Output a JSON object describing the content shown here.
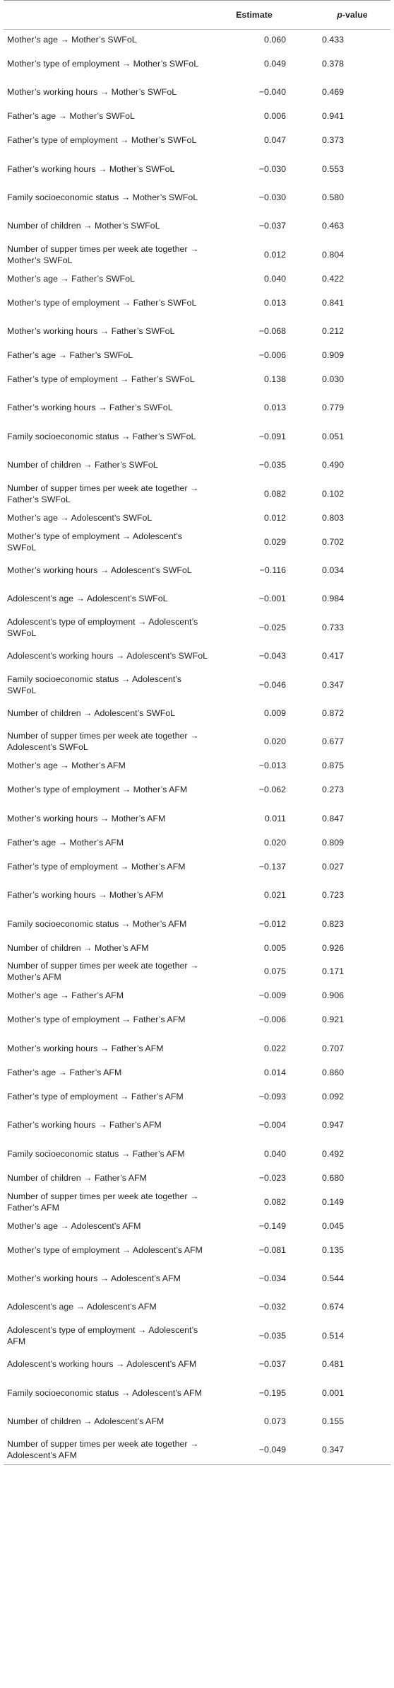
{
  "header": {
    "estimate": "Estimate",
    "p_italic": "p",
    "p_suffix": "-value"
  },
  "rows": [
    {
      "label": "Mother’s age → Mother’s SWFoL",
      "estimate": "0.060",
      "p": "0.433"
    },
    {
      "label": "Mother’s type of employment → Mother’s SWFoL",
      "estimate": "0.049",
      "p": "0.378"
    },
    {
      "label": "Mother’s working hours → Mother’s SWFoL",
      "estimate": "−0.040",
      "p": "0.469"
    },
    {
      "label": "Father’s age → Mother’s SWFoL",
      "estimate": "0.006",
      "p": "0.941"
    },
    {
      "label": "Father’s type of employment → Mother’s SWFoL",
      "estimate": "0.047",
      "p": "0.373"
    },
    {
      "label": "Father’s working hours → Mother’s SWFoL",
      "estimate": "−0.030",
      "p": "0.553"
    },
    {
      "label": "Family socioeconomic status → Mother’s SWFoL",
      "estimate": "−0.030",
      "p": "0.580"
    },
    {
      "label": "Number of children → Mother’s SWFoL",
      "estimate": "−0.037",
      "p": "0.463"
    },
    {
      "label": "Number of supper times per week ate together → Mother’s SWFoL",
      "estimate": "0.012",
      "p": "0.804"
    },
    {
      "label": "Mother’s age → Father’s SWFoL",
      "estimate": "0.040",
      "p": "0.422"
    },
    {
      "label": "Mother’s type of employment → Father’s SWFoL",
      "estimate": "0.013",
      "p": "0.841"
    },
    {
      "label": "Mother’s working hours → Father’s SWFoL",
      "estimate": "−0.068",
      "p": "0.212"
    },
    {
      "label": "Father’s age → Father’s SWFoL",
      "estimate": "−0.006",
      "p": "0.909"
    },
    {
      "label": "Father’s type of employment → Father’s SWFoL",
      "estimate": "0.138",
      "p": "0.030"
    },
    {
      "label": "Father’s working hours → Father’s SWFoL",
      "estimate": "0.013",
      "p": "0.779"
    },
    {
      "label": "Family socioeconomic status → Father’s SWFoL",
      "estimate": "−0.091",
      "p": "0.051"
    },
    {
      "label": "Number of children → Father’s SWFoL",
      "estimate": "−0.035",
      "p": "0.490"
    },
    {
      "label": "Number of supper times per week ate together → Father’s SWFoL",
      "estimate": "0.082",
      "p": "0.102"
    },
    {
      "label": "Mother’s age → Adolescent’s SWFoL",
      "estimate": "0.012",
      "p": "0.803"
    },
    {
      "label": "Mother’s type of employment → Adolescent’s SWFoL",
      "estimate": "0.029",
      "p": "0.702"
    },
    {
      "label": "Mother’s working hours → Adolescent’s SWFoL",
      "estimate": "−0.116",
      "p": "0.034"
    },
    {
      "label": "Adolescent’s age → Adolescent’s SWFoL",
      "estimate": "−0.001",
      "p": "0.984"
    },
    {
      "label": "Adolescent’s type of employment → Adolescent’s SWFoL",
      "estimate": "−0.025",
      "p": "0.733"
    },
    {
      "label": "Adolescent’s working hours → Adolescent’s SWFoL",
      "estimate": "−0.043",
      "p": "0.417"
    },
    {
      "label": "Family socioeconomic status → Adolescent’s SWFoL",
      "estimate": "−0.046",
      "p": "0.347"
    },
    {
      "label": "Number of children → Adolescent’s SWFoL",
      "estimate": "0.009",
      "p": "0.872"
    },
    {
      "label": "Number of supper times per week ate together → Adolescent’s SWFoL",
      "estimate": "0.020",
      "p": "0.677"
    },
    {
      "label": "Mother’s age → Mother’s AFM",
      "estimate": "−0.013",
      "p": "0.875"
    },
    {
      "label": "Mother’s type of employment → Mother’s AFM",
      "estimate": "−0.062",
      "p": "0.273"
    },
    {
      "label": "Mother’s working hours → Mother’s AFM",
      "estimate": "0.011",
      "p": "0.847"
    },
    {
      "label": "Father’s age → Mother’s AFM",
      "estimate": "0.020",
      "p": "0.809"
    },
    {
      "label": "Father’s type of employment → Mother’s AFM",
      "estimate": "−0.137",
      "p": "0.027"
    },
    {
      "label": "Father’s working hours → Mother’s AFM",
      "estimate": "0.021",
      "p": "0.723"
    },
    {
      "label": "Family socioeconomic status → Mother’s AFM",
      "estimate": "−0.012",
      "p": "0.823"
    },
    {
      "label": "Number of children → Mother’s AFM",
      "estimate": "0.005",
      "p": "0.926"
    },
    {
      "label": "Number of supper times per week ate together → Mother’s AFM",
      "estimate": "0.075",
      "p": "0.171"
    },
    {
      "label": "Mother’s age → Father’s AFM",
      "estimate": "−0.009",
      "p": "0.906"
    },
    {
      "label": "Mother’s type of employment → Father’s AFM",
      "estimate": "−0.006",
      "p": "0.921"
    },
    {
      "label": "Mother’s working hours → Father’s AFM",
      "estimate": "0.022",
      "p": "0.707"
    },
    {
      "label": "Father’s age → Father’s AFM",
      "estimate": "0.014",
      "p": "0.860"
    },
    {
      "label": "Father’s type of employment → Father’s AFM",
      "estimate": "−0.093",
      "p": "0.092"
    },
    {
      "label": "Father’s working hours → Father’s AFM",
      "estimate": "−0.004",
      "p": "0.947"
    },
    {
      "label": "Family socioeconomic status → Father’s AFM",
      "estimate": "0.040",
      "p": "0.492"
    },
    {
      "label": "Number of children → Father’s AFM",
      "estimate": "−0.023",
      "p": "0.680"
    },
    {
      "label": "Number of supper times per week ate together → Father’s AFM",
      "estimate": "0.082",
      "p": "0.149"
    },
    {
      "label": "Mother’s age → Adolescent’s AFM",
      "estimate": "−0.149",
      "p": "0.045"
    },
    {
      "label": "Mother’s type of employment → Adolescent’s AFM",
      "estimate": "−0.081",
      "p": "0.135"
    },
    {
      "label": "Mother’s working hours → Adolescent’s AFM",
      "estimate": "−0.034",
      "p": "0.544"
    },
    {
      "label": "Adolescent’s age → Adolescent’s AFM",
      "estimate": "−0.032",
      "p": "0.674"
    },
    {
      "label": "Adolescent’s type of employment → Adolescent’s AFM",
      "estimate": "−0.035",
      "p": "0.514"
    },
    {
      "label": "Adolescent’s working hours → Adolescent’s AFM",
      "estimate": "−0.037",
      "p": "0.481"
    },
    {
      "label": "Family socioeconomic status → Adolescent’s AFM",
      "estimate": "−0.195",
      "p": "0.001"
    },
    {
      "label": "Number of children → Adolescent’s AFM",
      "estimate": "0.073",
      "p": "0.155"
    },
    {
      "label": "Number of supper times per week ate together → Adolescent’s AFM",
      "estimate": "−0.049",
      "p": "0.347"
    }
  ]
}
